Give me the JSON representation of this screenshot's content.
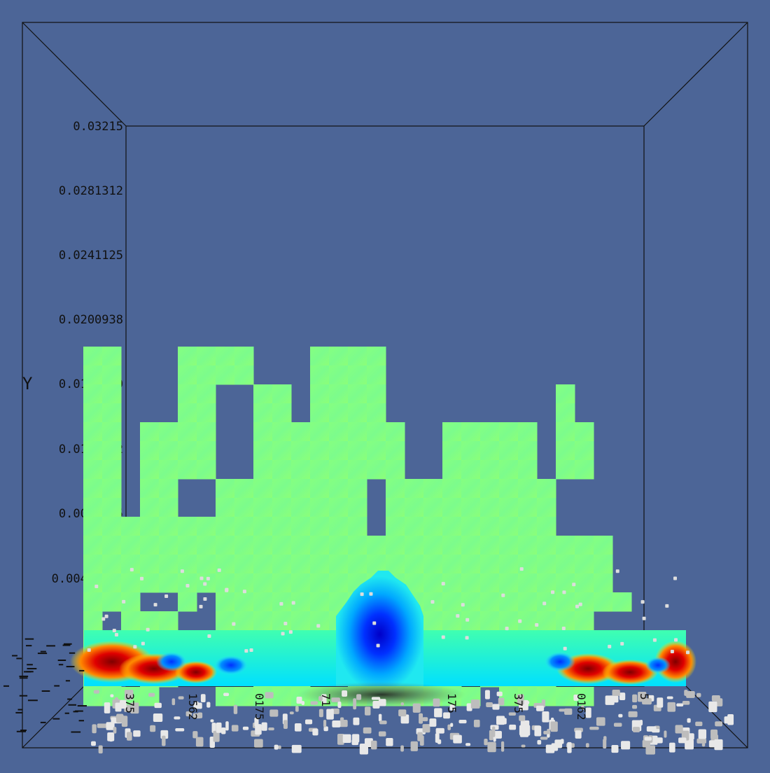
{
  "viewport": {
    "background": "#4c6597",
    "axis_color": "#111111",
    "y_axis": {
      "title": "Y",
      "tick_labels": [
        "0.03215",
        "0.0281312",
        "0.0241125",
        "0.0200938",
        "0.0160750",
        "0.0120562",
        "0.0080375",
        "0.00401875"
      ]
    },
    "x_axis": {
      "tick_labels_partial": [
        "375",
        "1562",
        "0175",
        "71",
        "175",
        "375",
        "0162",
        "5"
      ]
    },
    "colormap": [
      "#00007f",
      "#0000ff",
      "#00ffff",
      "#80ff80",
      "#ffff00",
      "#ff0000",
      "#7f0000"
    ]
  }
}
